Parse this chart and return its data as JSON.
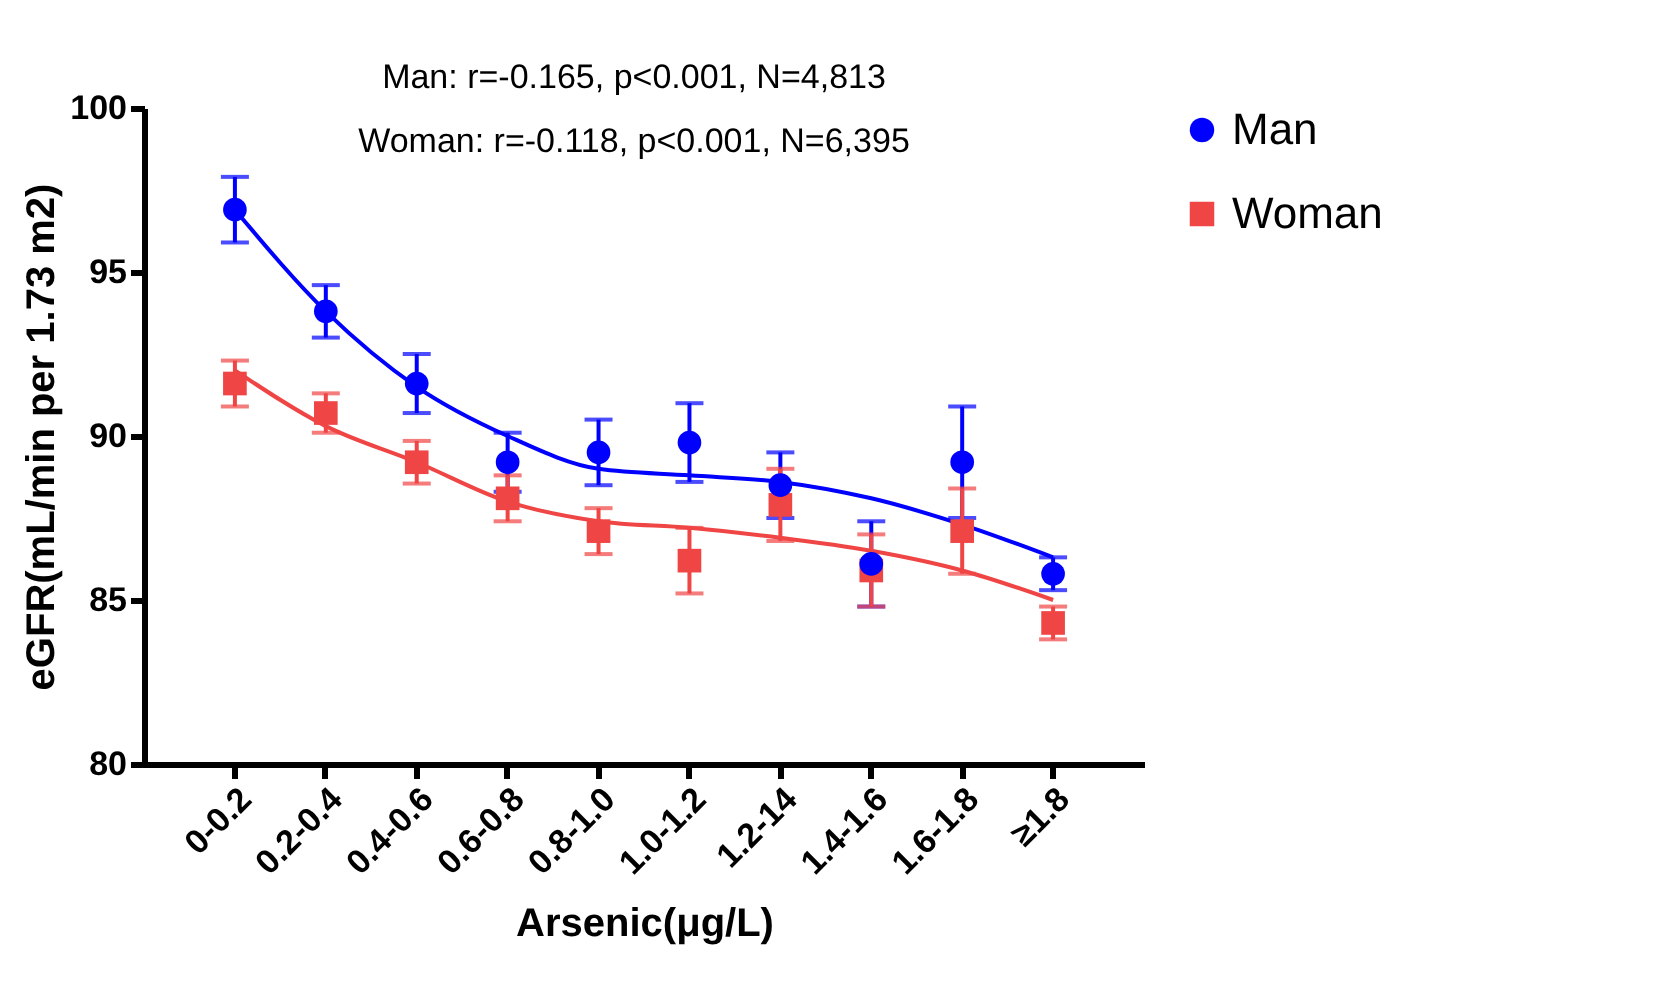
{
  "chart_data": {
    "type": "scatter",
    "xlabel": "Arsenic(μg/L)",
    "ylabel": "eGFR(mL/min per 1.73 m2)",
    "annotations": [
      "Man: r=-0.165, p<0.001, N=4,813",
      "Woman: r=-0.118, p<0.001, N=6,395"
    ],
    "categories": [
      "0-0.2",
      "0.2-0.4",
      "0.4-0.6",
      "0.6-0.8",
      "0.8-1.0",
      "1.0-1.2",
      "1.2-14",
      "1.4-1.6",
      "1.6-1.8",
      "≥1.8"
    ],
    "series": [
      {
        "name": "Man",
        "color": "#0000ff",
        "marker": "circle",
        "values": [
          96.9,
          93.8,
          91.6,
          89.2,
          89.5,
          89.8,
          88.5,
          86.1,
          89.2,
          85.8
        ],
        "errors": [
          1.0,
          0.8,
          0.9,
          0.9,
          1.0,
          1.2,
          1.0,
          1.3,
          1.7,
          0.5
        ]
      },
      {
        "name": "Woman",
        "color": "#f04545",
        "marker": "square",
        "values": [
          91.6,
          90.7,
          89.2,
          88.1,
          87.1,
          86.2,
          87.9,
          85.9,
          87.1,
          84.3
        ],
        "errors": [
          0.7,
          0.6,
          0.65,
          0.7,
          0.7,
          1.0,
          1.1,
          1.1,
          1.3,
          0.5
        ]
      },
      {
        "type": "line",
        "color": "#0000ff",
        "values": [
          96.9,
          93.8,
          91.5,
          90.0,
          89.0,
          88.8,
          88.6,
          88.1,
          87.3,
          86.3
        ]
      },
      {
        "type": "line",
        "color": "#f04545",
        "values": [
          92.0,
          90.3,
          89.2,
          88.0,
          87.4,
          87.2,
          86.9,
          86.5,
          85.9,
          85.0
        ]
      }
    ],
    "ylim": [
      80,
      100
    ],
    "yticks": [
      80,
      85,
      90,
      95,
      100
    ],
    "grid": false,
    "legend": "right"
  }
}
